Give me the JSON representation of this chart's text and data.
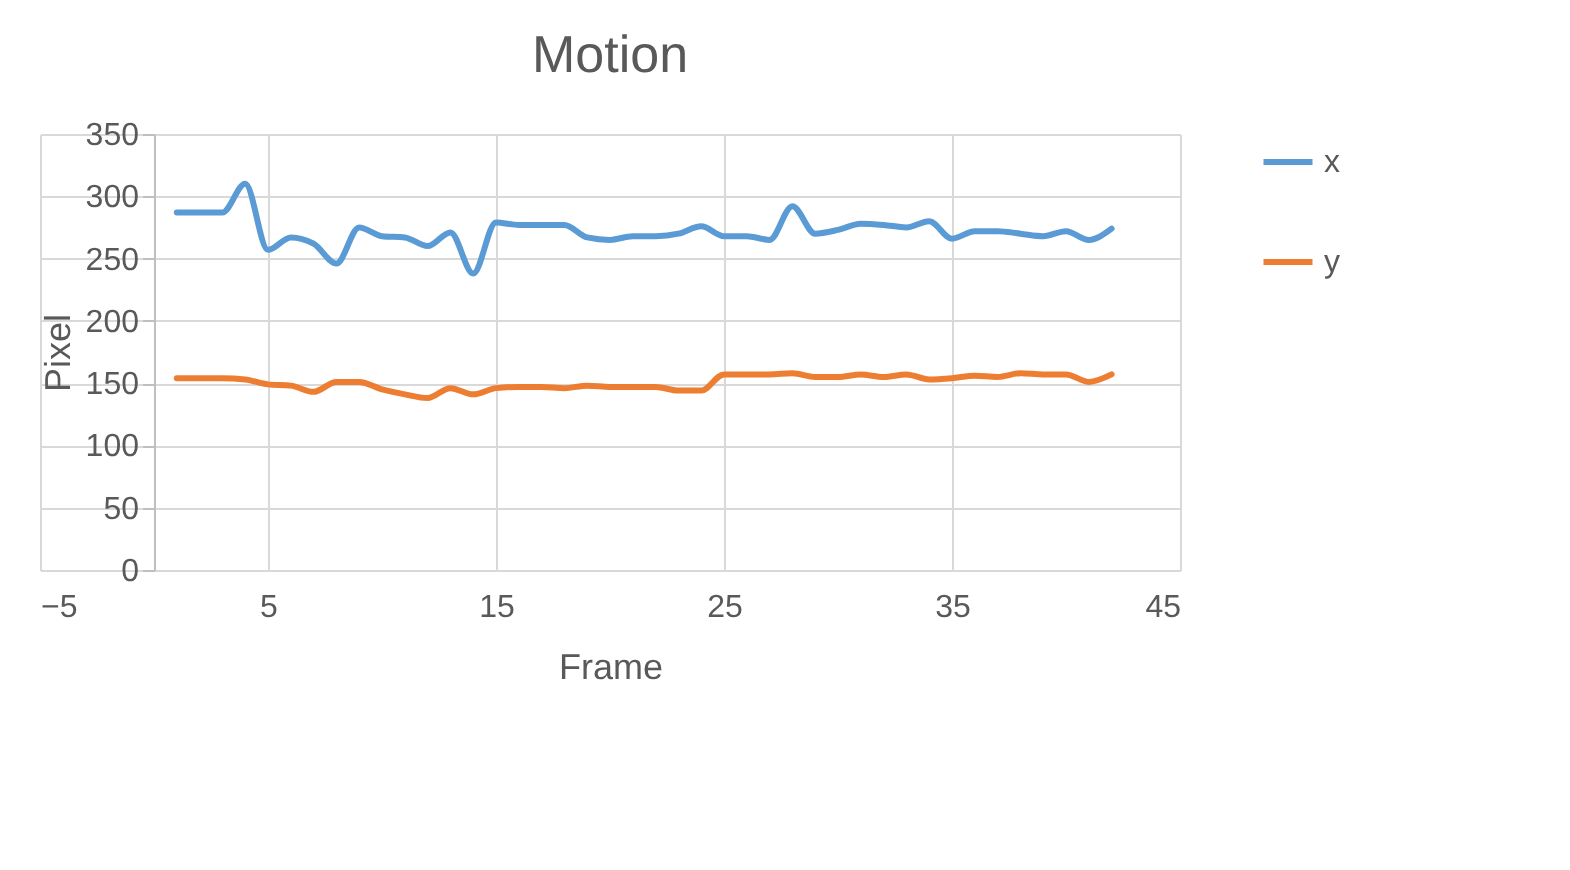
{
  "chart_data": {
    "type": "line",
    "title": "Motion",
    "xlabel": "Frame",
    "ylabel": "Pixel",
    "x": [
      1,
      2,
      3,
      4,
      5,
      6,
      7,
      8,
      9,
      10,
      11,
      12,
      13,
      14,
      15,
      16,
      17,
      18,
      19,
      20,
      21,
      22,
      23,
      24,
      25,
      26,
      27,
      28,
      29,
      30,
      31,
      32,
      33,
      34,
      35,
      36,
      37,
      38,
      39,
      40,
      41,
      42
    ],
    "series": [
      {
        "name": "x",
        "color": "#5b9bd5",
        "values": [
          287,
          287,
          287,
          310,
          257,
          267,
          262,
          246,
          275,
          268,
          267,
          260,
          271,
          238,
          279,
          277,
          277,
          277,
          267,
          265,
          268,
          268,
          270,
          276,
          268,
          268,
          265,
          292,
          270,
          273,
          278,
          277,
          275,
          280,
          266,
          272,
          272,
          270,
          268,
          272,
          265,
          274
        ]
      },
      {
        "name": "y",
        "color": "#ed7d31",
        "values": [
          154,
          154,
          154,
          153,
          149,
          148,
          143,
          151,
          151,
          145,
          141,
          138,
          146,
          141,
          146,
          147,
          147,
          146,
          148,
          147,
          147,
          147,
          144,
          144,
          157,
          157,
          157,
          158,
          155,
          155,
          157,
          155,
          157,
          153,
          154,
          156,
          155,
          158,
          157,
          157,
          151,
          157
        ]
      }
    ],
    "xlim": [
      -5,
      45
    ],
    "xticks": [
      -5,
      5,
      15,
      25,
      35,
      45
    ],
    "ylim": [
      0,
      350
    ],
    "yticks": [
      0,
      50,
      100,
      150,
      200,
      250,
      300,
      350
    ],
    "grid": true,
    "legend": "right",
    "marker": "none",
    "line_style": "solid"
  }
}
